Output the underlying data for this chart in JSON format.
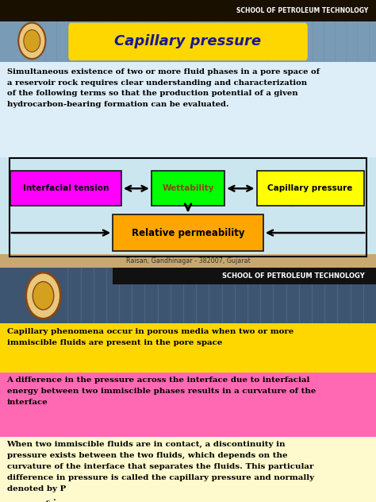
{
  "fig_width": 4.74,
  "fig_height": 6.32,
  "dpi": 100,
  "header_text": "SCHOOL OF PETROLEUM TECHNOLOGY",
  "header_bg": "#1a1000",
  "header_text_color": "#ffffff",
  "title_bg": "#7a9bb5",
  "title_box_color": "#FFD700",
  "title_text": "Capillary pressure",
  "title_text_color": "#1a1a8c",
  "top_section_bg": "#ddeef8",
  "body_text_line1": "Simultaneous existence of two or more fluid phases in a pore space of",
  "body_text_line2": "a reservoir rock requires clear understanding and characterization",
  "body_text_line3": "of the following terms so that the production potential of a given",
  "body_text_line4": "hydrocarbon-bearing formation can be evaluated.",
  "diagram_bg": "#cce6f0",
  "box1_label": "Interfacial tension",
  "box1_color": "#FF00FF",
  "box1_text_color": "#000000",
  "box2_label": "Wettability",
  "box2_color": "#00FF00",
  "box2_text_color": "#8B4513",
  "box3_label": "Capillary pressure",
  "box3_color": "#FFFF00",
  "box3_text_color": "#000000",
  "box4_label": "Relative permeability",
  "box4_color": "#FFA500",
  "box4_text_color": "#000000",
  "separator_text": "Raisan, Gandhinagar - 382007, Gujarat",
  "separator_bg": "#c8a870",
  "bottom_img_bg": "#3d5570",
  "bottom_header_text": "SCHOOL OF PETROLEUM TECHNOLOGY",
  "bottom_header_bg": "#111111",
  "bottom_header_text_color": "#ffffff",
  "section1_bg": "#FFD700",
  "section1_text": "Capillary phenomena occur in porous media when two or more\nimmiscible fluids are present in the pore space",
  "section2_bg": "#FF69B4",
  "section2_text": "A difference in the pressure across the interface due to interfacial\nenergy between two immiscible phases results in a curvature of the\ninterface",
  "section3_bg": "#FFFACD",
  "section3_text": "When two immiscible fluids are in contact, a discontinuity in\npressure exists between the two fluids, which depends on the\ncurvature of the interface that separates the fluids. This particular\ndifference in pressure is called the capillary pressure and normally\ndenoted by P",
  "section3_sub": "c",
  "text_color": "#000000"
}
